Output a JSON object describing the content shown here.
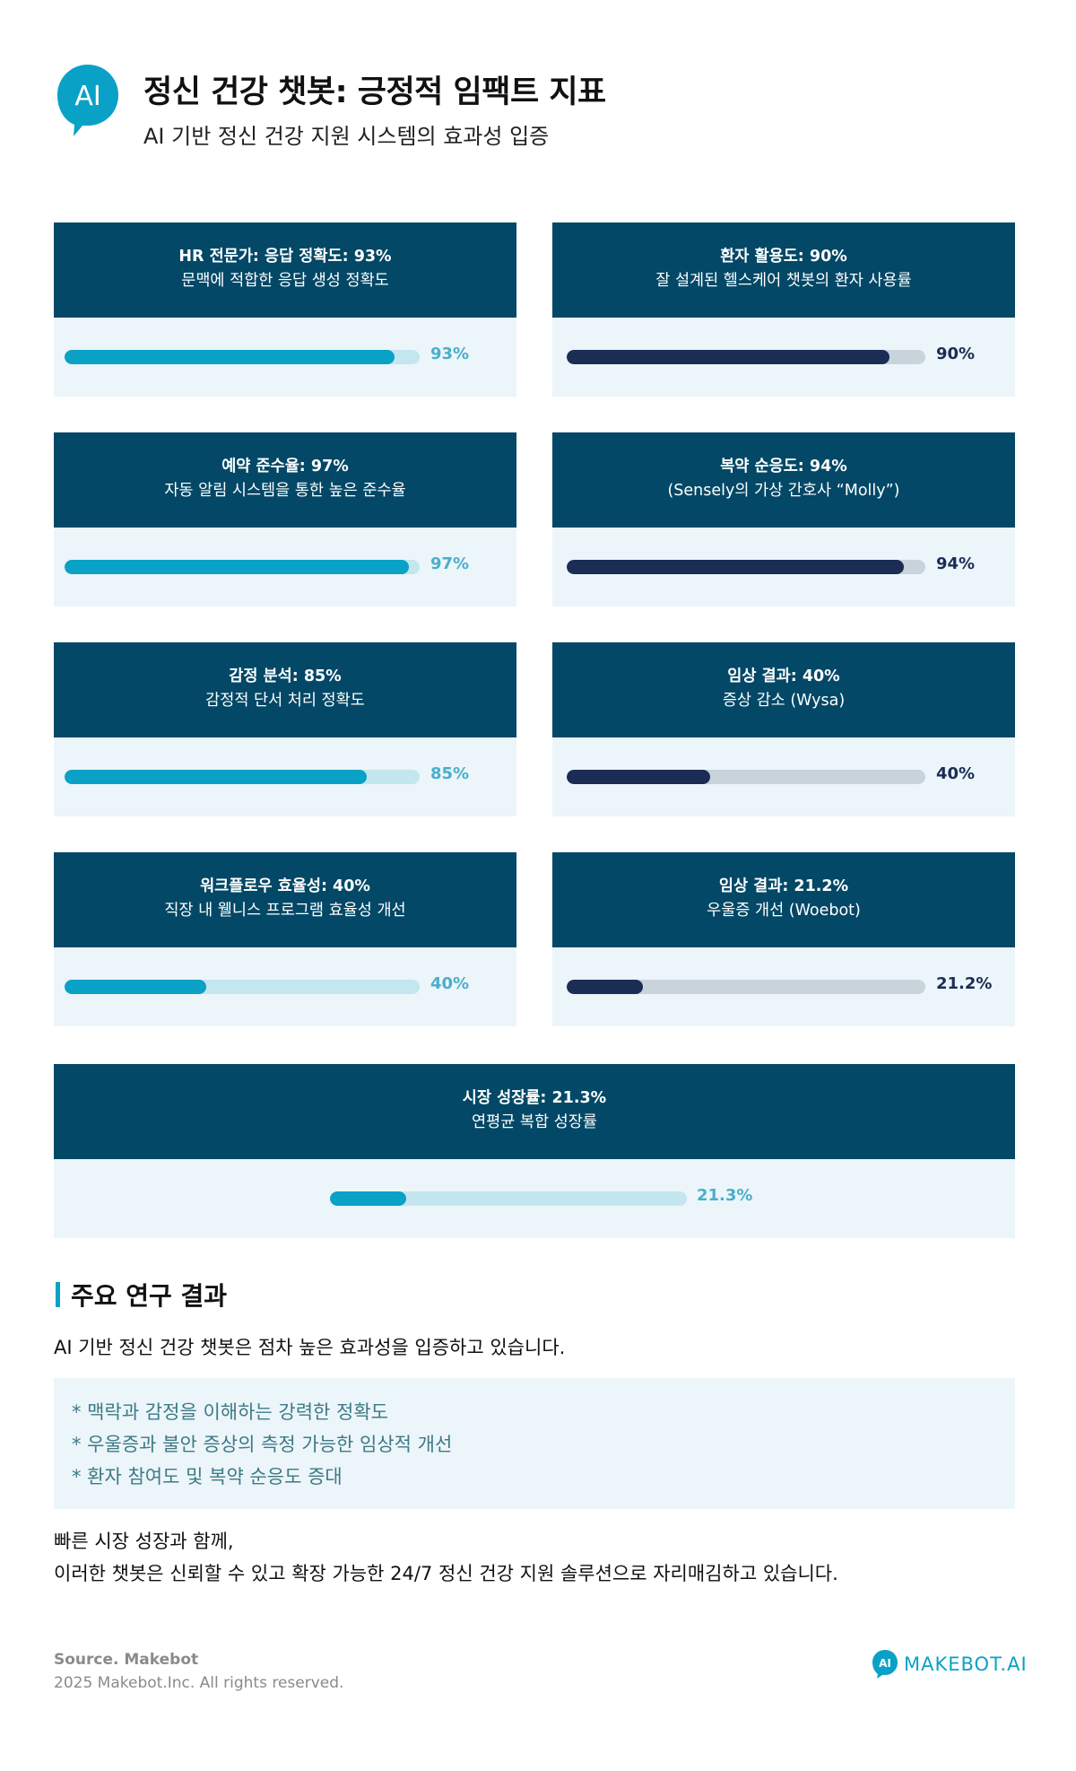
{
  "header": {
    "logo_text": "AI",
    "title": "정신 건강 챗봇: 긍정적 임팩트 지표",
    "subtitle": "AI 기반 정신 건강 지원 시스템의 효과성 입증"
  },
  "colors": {
    "header_bg": "#034866",
    "card_bg": "#ecf5f9",
    "accent_cyan": "#0aa1c6",
    "accent_navy": "#1b2c55"
  },
  "metrics": [
    {
      "title": "HR 전문가: 응답 정확도: 93%",
      "desc": "문맥에 적합한 응답 생성 정확도",
      "value": 93,
      "label": "93%"
    },
    {
      "title": "환자 활용도: 90%",
      "desc": "잘 설계된 헬스케어 챗봇의 환자 사용률",
      "value": 90,
      "label": "90%"
    },
    {
      "title": "예약 준수율: 97%",
      "desc": "자동 알림 시스템을 통한 높은 준수율",
      "value": 97,
      "label": "97%"
    },
    {
      "title": "복약 순응도: 94%",
      "desc": "(Sensely의 가상 간호사 “Molly”)",
      "value": 94,
      "label": "94%"
    },
    {
      "title": "감정 분석: 85%",
      "desc": "감정적 단서 처리 정확도",
      "value": 85,
      "label": "85%"
    },
    {
      "title": "임상 결과: 40%",
      "desc": "증상 감소 (Wysa)",
      "value": 40,
      "label": "40%"
    },
    {
      "title": "워크플로우 효율성: 40%",
      "desc": "직장 내 웰니스 프로그램 효율성 개선",
      "value": 40,
      "label": "40%"
    },
    {
      "title": "임상 결과: 21.2%",
      "desc": "우울증 개선 (Woebot)",
      "value": 21.2,
      "label": "21.2%"
    },
    {
      "title": "시장 성장률: 21.3%",
      "desc": "연평균 복합 성장률",
      "value": 21.3,
      "label": "21.3%"
    }
  ],
  "findings": {
    "heading": "주요 연구 결과",
    "intro": "AI 기반 정신 건강 챗봇은 점차 높은 효과성을 입증하고 있습니다.",
    "items": [
      "* 맥락과 감정을 이해하는 강력한 정확도",
      "* 우울증과 불안 증상의 측정 가능한 임상적 개선",
      "* 환자 참여도 및 복약 순응도 증대"
    ],
    "closing_line1": "빠른 시장 성장과 함께,",
    "closing_line2": "이러한 챗봇은 신뢰할 수 있고 확장 가능한 24/7 정신 건강 지원 솔루션으로 자리매김하고 있습니다."
  },
  "footer": {
    "source": "Source. Makebot",
    "copyright": "2025 Makebot.Inc. All rights reserved.",
    "brand_icon_text": "AI",
    "brand": "MAKEBOT.AI"
  }
}
